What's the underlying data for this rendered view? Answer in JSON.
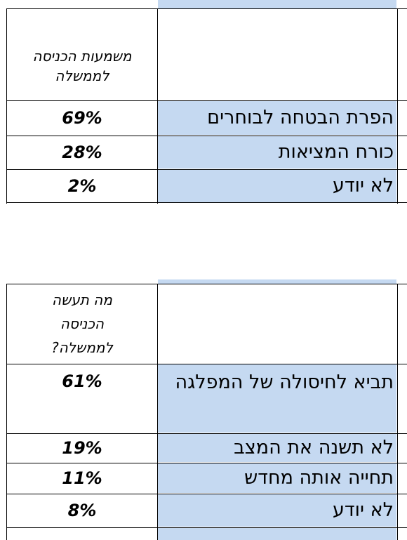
{
  "table1": {
    "header": "משמעות הכניסה לממשלה",
    "rows": [
      {
        "label": "הפרת הבטחה לבוחרים",
        "value": "69%"
      },
      {
        "label": "כורח המציאות",
        "value": "28%"
      },
      {
        "label": "לא יודע",
        "value": "2%"
      }
    ]
  },
  "table2": {
    "header": "מה תעשה הכניסה לממשלה?",
    "rows": [
      {
        "label": "תביא לחיסולה של המפלגה",
        "value": "61%"
      },
      {
        "label": "לא תשנה את המצב",
        "value": "19%"
      },
      {
        "label": "תחייה אותה מחדש",
        "value": "11%"
      },
      {
        "label": "לא יודע",
        "value": "8%"
      }
    ]
  },
  "colors": {
    "label_fill": "#c5d9f1",
    "grid": "#000000"
  }
}
